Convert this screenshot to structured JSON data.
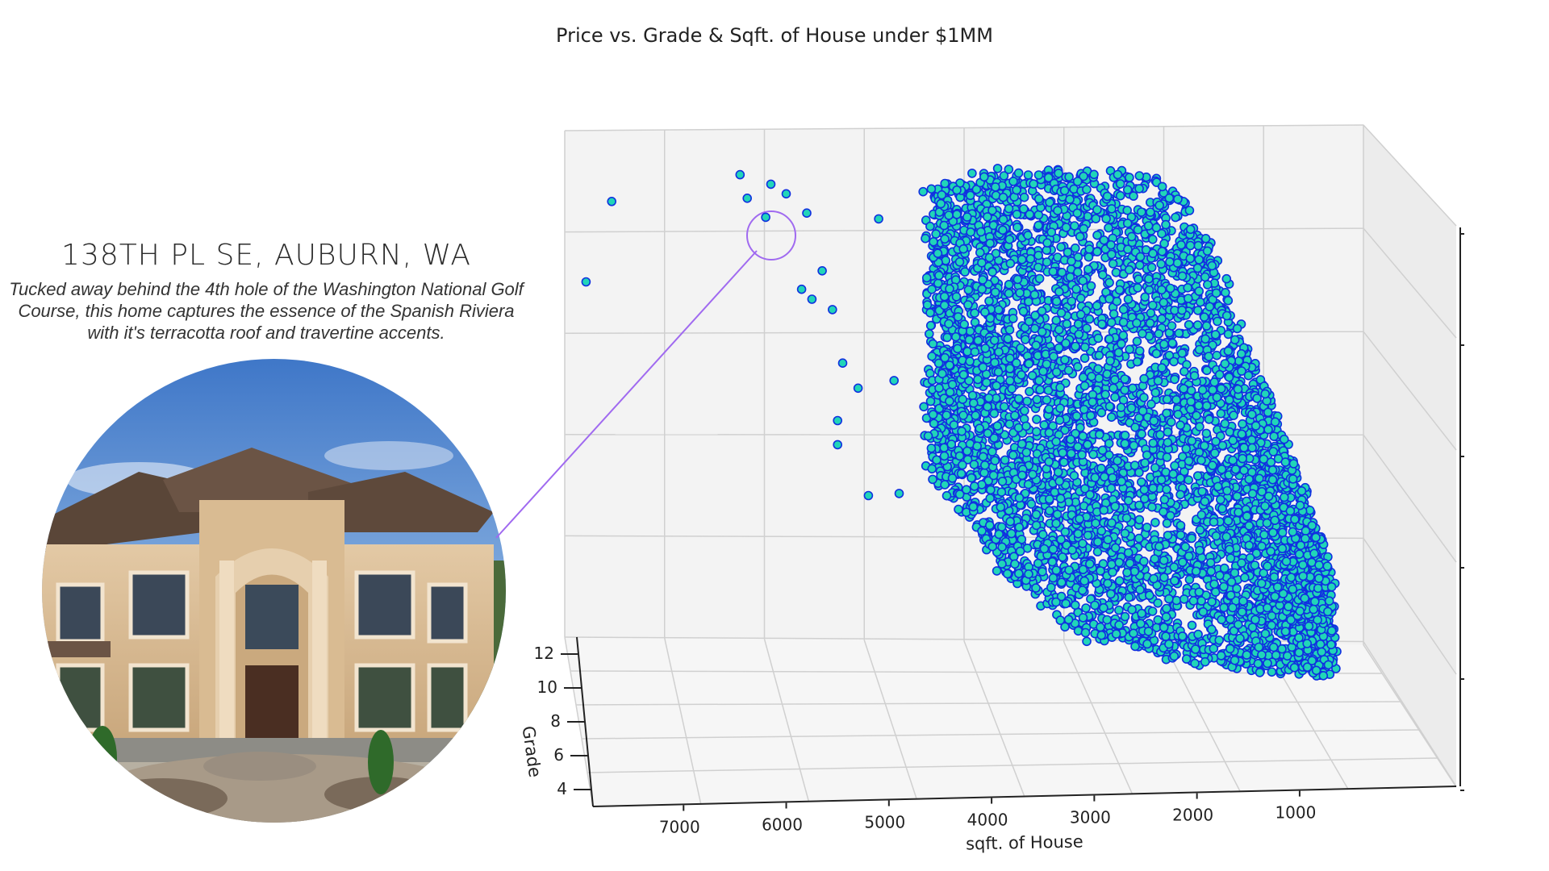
{
  "listing": {
    "address": "138TH PL SE, AUBURN, WA",
    "description": "Tucked away behind the 4th hole of the Washington National Golf Course, this home captures the essence of the Spanish Riviera with it's terracotta roof and travertine accents."
  },
  "colors": {
    "point_fill": "#21d5b8",
    "point_edge": "#1030e0",
    "callout": "#a06af0",
    "pane": "#f3f3f3",
    "grid": "#d0d0d0"
  },
  "chart_data": {
    "type": "scatter",
    "projection": "3d",
    "title": "Price vs. Grade & Sqft. of House under $1MM",
    "xlabel": "sqft. of House",
    "ylabel": "Grade",
    "x_ticks": [
      7000,
      6000,
      5000,
      4000,
      3000,
      2000,
      1000
    ],
    "y_ticks": [
      4,
      6,
      8,
      10,
      12
    ],
    "xlim": [
      8000,
      300
    ],
    "ylim": [
      3,
      13
    ],
    "zlim": [
      0,
      1000000
    ],
    "grid": true,
    "highlight": {
      "sqft": 6200,
      "grade": 12,
      "price": 890000,
      "label": "138TH PL SE, AUBURN, WA"
    },
    "outliers": [
      {
        "sqft": 7700,
        "price": 920000
      },
      {
        "sqft": 7950,
        "price": 740000
      },
      {
        "sqft": 6450,
        "price": 980000
      },
      {
        "sqft": 6380,
        "price": 930000
      },
      {
        "sqft": 6150,
        "price": 960000
      },
      {
        "sqft": 6000,
        "price": 940000
      },
      {
        "sqft": 5800,
        "price": 900000
      },
      {
        "sqft": 5850,
        "price": 740000
      },
      {
        "sqft": 5750,
        "price": 720000
      },
      {
        "sqft": 5550,
        "price": 700000
      },
      {
        "sqft": 5650,
        "price": 780000
      },
      {
        "sqft": 5450,
        "price": 590000
      },
      {
        "sqft": 5300,
        "price": 540000
      },
      {
        "sqft": 5500,
        "price": 470000
      },
      {
        "sqft": 5500,
        "price": 420000
      },
      {
        "sqft": 5100,
        "price": 890000
      },
      {
        "sqft": 5200,
        "price": 320000
      },
      {
        "sqft": 4900,
        "price": 330000
      },
      {
        "sqft": 4950,
        "price": 560000
      }
    ],
    "cluster_envelope": [
      {
        "sqft": 4600,
        "price_min": 380000,
        "price_max": 960000
      },
      {
        "sqft": 4200,
        "price_min": 280000,
        "price_max": 975000
      },
      {
        "sqft": 3800,
        "price_min": 180000,
        "price_max": 990000
      },
      {
        "sqft": 3400,
        "price_min": 110000,
        "price_max": 990000
      },
      {
        "sqft": 3000,
        "price_min": 80000,
        "price_max": 990000
      },
      {
        "sqft": 2600,
        "price_min": 70000,
        "price_max": 980000
      },
      {
        "sqft": 2200,
        "price_min": 60000,
        "price_max": 960000
      },
      {
        "sqft": 1800,
        "price_min": 60000,
        "price_max": 820000
      },
      {
        "sqft": 1400,
        "price_min": 60000,
        "price_max": 600000
      },
      {
        "sqft": 1000,
        "price_min": 70000,
        "price_max": 420000
      },
      {
        "sqft": 700,
        "price_min": 75000,
        "price_max": 250000
      }
    ]
  }
}
